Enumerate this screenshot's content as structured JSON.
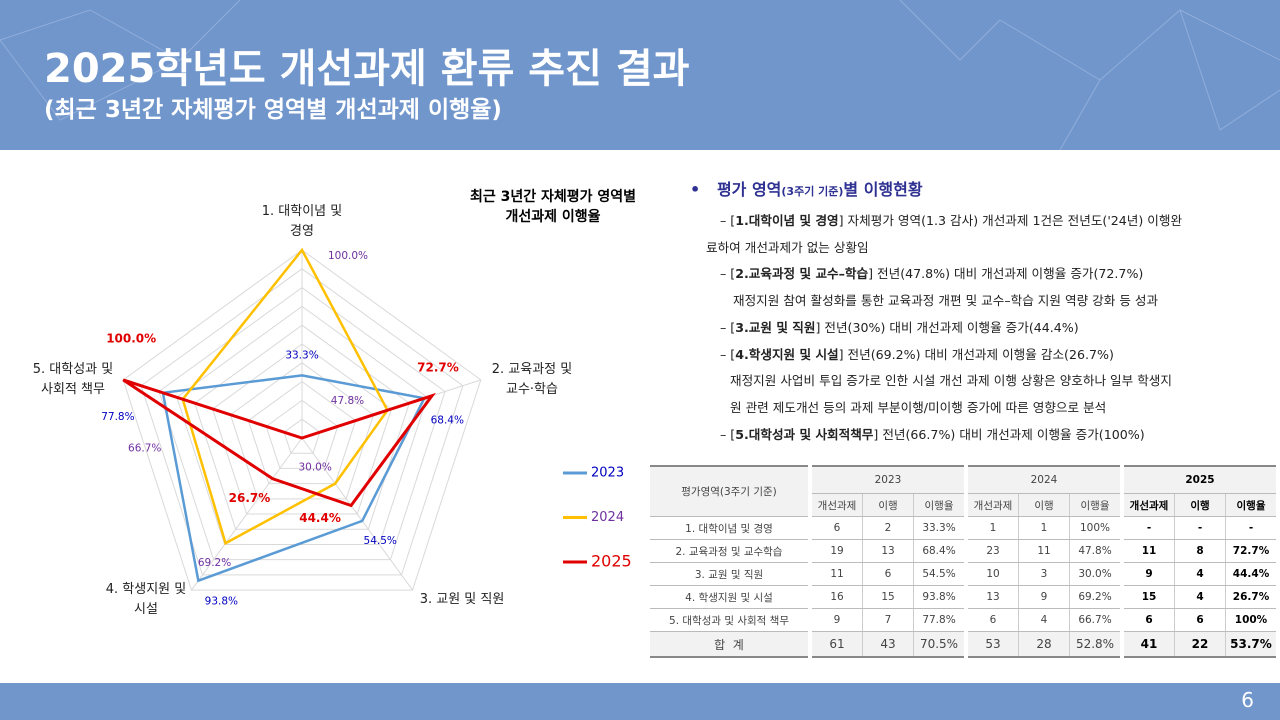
{
  "header": {
    "title": "2025학년도 개선과제 환류 추진 결과",
    "subtitle": "(최근 3년간 자체평가 영역별 개선과제 이행율)"
  },
  "chart_data": {
    "type": "radar",
    "title": "최근 3년간 자체평가 영역별\n개선과제 이행율",
    "categories": [
      "1. 대학이념 및\n경영",
      "2. 교육과정 및\n교수·학습",
      "3. 교원 및 직원",
      "4. 학생지원 및\n시설",
      "5. 대학성과 및\n사회적 책무"
    ],
    "rlim": [
      0,
      100
    ],
    "rticks": [
      0,
      10,
      20,
      30,
      40,
      50,
      60,
      70,
      80,
      90,
      100
    ],
    "legend": "right",
    "series": [
      {
        "name": "2023",
        "color": "#5b9bd5",
        "label_color": "#0000c0",
        "values": [
          33.3,
          68.4,
          54.5,
          93.8,
          77.8
        ],
        "value_labels": [
          "33.3%",
          "68.4%",
          "54.5%",
          "93.8%",
          "77.8%"
        ]
      },
      {
        "name": "2024",
        "color": "#ffc000",
        "label_color": "#7030a0",
        "values": [
          100,
          47.8,
          30.0,
          69.2,
          66.7
        ],
        "value_labels": [
          "100.0%",
          "47.8%",
          "30.0%",
          "69.2%",
          "66.7%"
        ]
      },
      {
        "name": "2025",
        "color": "#e00000",
        "label_color": "#e00000",
        "values": [
          0,
          72.7,
          44.4,
          26.7,
          100
        ],
        "value_labels": [
          null,
          "72.7%",
          "44.4%",
          "26.7%",
          "100.0%"
        ]
      }
    ]
  },
  "summary": {
    "heading": {
      "main": "평가 영역",
      "note": "(3주기 기준)",
      "tail": "별 이행현황"
    },
    "lines": [
      [
        {
          "text": "– [",
          "bold": false
        },
        {
          "text": "1.대학이념 및 경영",
          "bold": true
        },
        {
          "text": "] 자체평가 영역(1.3 감사) 개선과제 1건은 전년도('24년) 이행완",
          "bold": false
        }
      ],
      [
        {
          "text": "료하여 개선과제가 없는 상황임",
          "bold": false
        }
      ],
      [
        {
          "text": "– [",
          "bold": false
        },
        {
          "text": "2.교육과정 및 교수–학습",
          "bold": true
        },
        {
          "text": "] 전년(47.8%) 대비 개선과제 이행율 증가(72.7%)",
          "bold": false
        }
      ],
      [
        {
          "text": "재정지원 참여 활성화를 통한 교육과정 개편 및 교수–학습 지원 역량 강화 등 성과",
          "bold": false
        }
      ],
      [
        {
          "text": "– [",
          "bold": false
        },
        {
          "text": "3.교원 및 직원",
          "bold": true
        },
        {
          "text": "] 전년(30%) 대비 개선과제 이행율 증가(44.4%)",
          "bold": false
        }
      ],
      [
        {
          "text": "– [",
          "bold": false
        },
        {
          "text": "4.학생지원 및 시설",
          "bold": true
        },
        {
          "text": "] 전년(69.2%) 대비 개선과제 이행율 감소(26.7%)",
          "bold": false
        }
      ],
      [
        {
          "text": "재정지원 사업비 투입 증가로 인한 시설 개선 과제 이행 상황은 양호하나 일부 학생지",
          "bold": false
        }
      ],
      [
        {
          "text": "원 관련 제도개선 등의 과제 부분이행/미이행 증가에 따른 영향으로 분석",
          "bold": false
        }
      ],
      [
        {
          "text": "– [",
          "bold": false
        },
        {
          "text": "5.대학성과 및 사회적책무",
          "bold": true
        },
        {
          "text": "] 전년(66.7%) 대비 개선과제 이행율 증가(100%)",
          "bold": false
        }
      ]
    ]
  },
  "table": {
    "group_headers": [
      "평가영역(3주기 기준)",
      "2023",
      "2024",
      "2025"
    ],
    "sub_headers": [
      "개선과제",
      "이행",
      "이행율",
      "개선과제",
      "이행",
      "이행율",
      "개선과제",
      "이행",
      "이행율"
    ],
    "rows": [
      [
        "1. 대학이념 및 경영",
        "6",
        "2",
        "33.3%",
        "1",
        "1",
        "100%",
        "-",
        "-",
        "-"
      ],
      [
        "2. 교육과정 및 교수학습",
        "19",
        "13",
        "68.4%",
        "23",
        "11",
        "47.8%",
        "11",
        "8",
        "72.7%"
      ],
      [
        "3. 교원 및 직원",
        "11",
        "6",
        "54.5%",
        "10",
        "3",
        "30.0%",
        "9",
        "4",
        "44.4%"
      ],
      [
        "4. 학생지원 및 시설",
        "16",
        "15",
        "93.8%",
        "13",
        "9",
        "69.2%",
        "15",
        "4",
        "26.7%"
      ],
      [
        "5. 대학성과 및 사회적 책무",
        "9",
        "7",
        "77.8%",
        "6",
        "4",
        "66.7%",
        "6",
        "6",
        "100%"
      ],
      [
        "합  계",
        "61",
        "43",
        "70.5%",
        "53",
        "28",
        "52.8%",
        "41",
        "22",
        "53.7%"
      ]
    ]
  },
  "page_number": "6"
}
